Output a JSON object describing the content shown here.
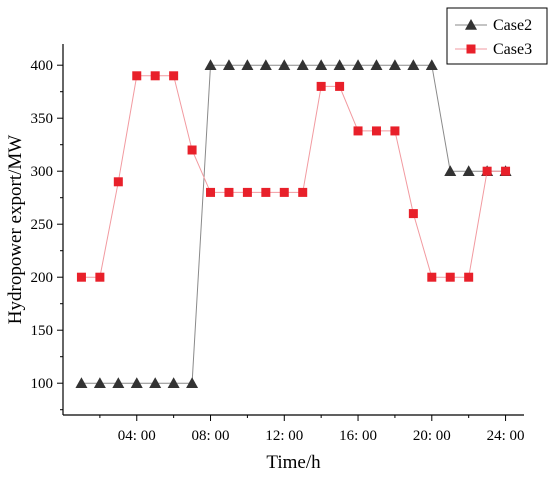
{
  "chart_data": {
    "type": "line",
    "title": "",
    "xlabel": "Time/h",
    "ylabel": "Hydropower export/MW",
    "x": [
      1,
      2,
      3,
      4,
      5,
      6,
      7,
      8,
      9,
      10,
      11,
      12,
      13,
      14,
      15,
      16,
      17,
      18,
      19,
      20,
      21,
      22,
      23,
      24
    ],
    "xlim": [
      0,
      25
    ],
    "ylim": [
      70,
      420
    ],
    "x_ticks": [
      {
        "value": 4,
        "label": "04: 00"
      },
      {
        "value": 8,
        "label": "08: 00"
      },
      {
        "value": 12,
        "label": "12: 00"
      },
      {
        "value": 16,
        "label": "16: 00"
      },
      {
        "value": 20,
        "label": "20: 00"
      },
      {
        "value": 24,
        "label": "24: 00"
      }
    ],
    "y_ticks": [
      100,
      150,
      200,
      250,
      300,
      350,
      400
    ],
    "legend_position": "top-right",
    "grid": false,
    "series": [
      {
        "name": "Case2",
        "marker": "triangle",
        "color": "#333333",
        "line_color": "#8a8a8a",
        "values": [
          100,
          100,
          100,
          100,
          100,
          100,
          100,
          400,
          400,
          400,
          400,
          400,
          400,
          400,
          400,
          400,
          400,
          400,
          400,
          400,
          300,
          300,
          300,
          300
        ]
      },
      {
        "name": "Case3",
        "marker": "square",
        "color": "#e8202a",
        "line_color": "#f29aa0",
        "values": [
          200,
          200,
          290,
          390,
          390,
          390,
          320,
          280,
          280,
          280,
          280,
          280,
          280,
          380,
          380,
          338,
          338,
          338,
          260,
          200,
          200,
          200,
          300,
          300
        ]
      }
    ]
  }
}
